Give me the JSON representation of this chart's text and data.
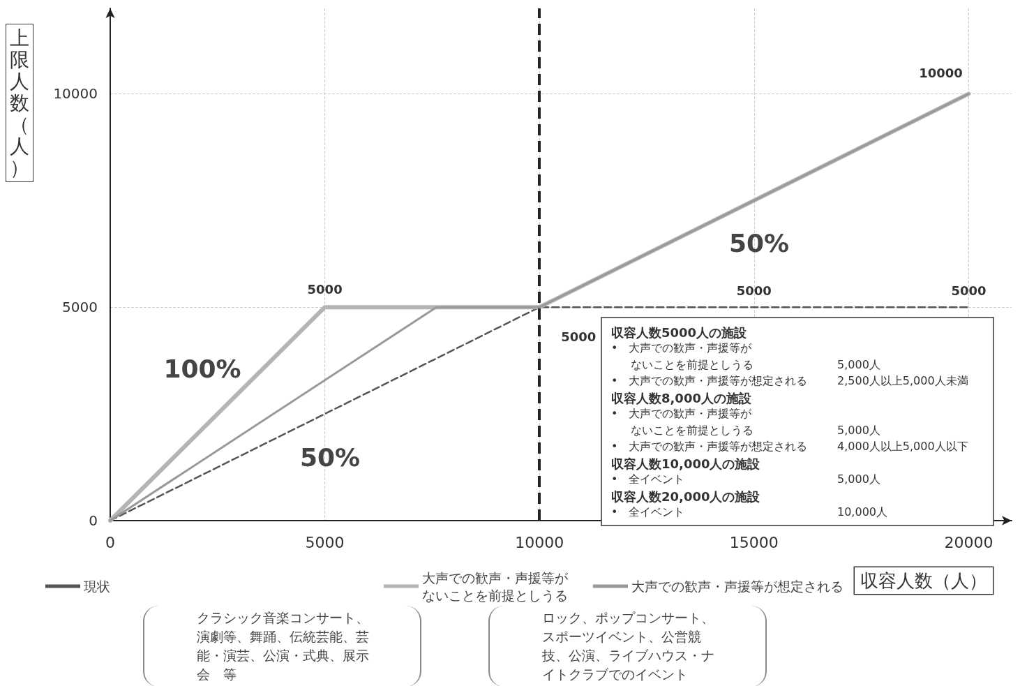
{
  "chart_data": {
    "type": "line",
    "xlabel": "収容人数（人）",
    "ylabel": "上限人数（人）",
    "xlim": [
      0,
      21000
    ],
    "ylim": [
      0,
      12000
    ],
    "xticks": [
      0,
      5000,
      10000,
      15000,
      20000
    ],
    "yticks": [
      0,
      5000,
      10000
    ],
    "grid": true,
    "legend": "bottom",
    "marker": "none",
    "series": [
      {
        "name": "現状",
        "color": "#555555",
        "line_style": "dashed",
        "x": [
          0,
          10000,
          20000
        ],
        "values": [
          0,
          5000,
          5000
        ]
      },
      {
        "name": "大声での歓声・声援等がないことを前提としうる",
        "color": "#b4b4b4",
        "line_style": "solid",
        "x": [
          0,
          5000,
          10000,
          20000
        ],
        "values": [
          0,
          5000,
          5000,
          10000
        ]
      },
      {
        "name": "大声での歓声・声援等が想定される",
        "color": "#999999",
        "line_style": "solid",
        "x": [
          0,
          7600,
          10000,
          20000
        ],
        "values": [
          0,
          5000,
          5000,
          10000
        ]
      }
    ],
    "ref_lines": [
      {
        "axis": "x",
        "value": 10000,
        "color": "#222222",
        "line_style": "dashed"
      }
    ],
    "annotations": [
      "100%",
      "50%",
      "50%",
      {
        "text": "5000",
        "x": 5000,
        "y": 5000
      },
      {
        "text": "5000",
        "x": 10000,
        "y": 5000
      },
      {
        "text": "5000",
        "x": 15000,
        "y": 5000
      },
      {
        "text": "5000",
        "x": 20000,
        "y": 5000
      },
      {
        "text": "10000",
        "x": 20000,
        "y": 10000
      },
      "収容人数5000人の施設",
      "•　大声での歓声・声援等が",
      "ないことを前提としうる",
      "5,000人",
      "•　大声での歓声・声援等が想定される",
      "2,500人以上5,000人未満",
      "収容人数8,000人の施設",
      "•　大声での歓声・声援等が",
      "ないことを前提としうる",
      "5,000人",
      "•　大声での歓声・声援等が想定される",
      "4,000人以上5,000人以下",
      "収容人数10,000人の施設",
      "•　全イベント",
      "5,000人",
      "収容人数20,000人の施設",
      "•　全イベント",
      "10,000人",
      "クラシック音楽コンサート、演劇等、舞踊、伝統芸能、芸能・演芸、公演・式典、展示会　等",
      "ロック、ポップコンサート、スポーツイベント、公営競技、公演、ライブハウス・ナイトクラブでのイベント"
    ]
  }
}
